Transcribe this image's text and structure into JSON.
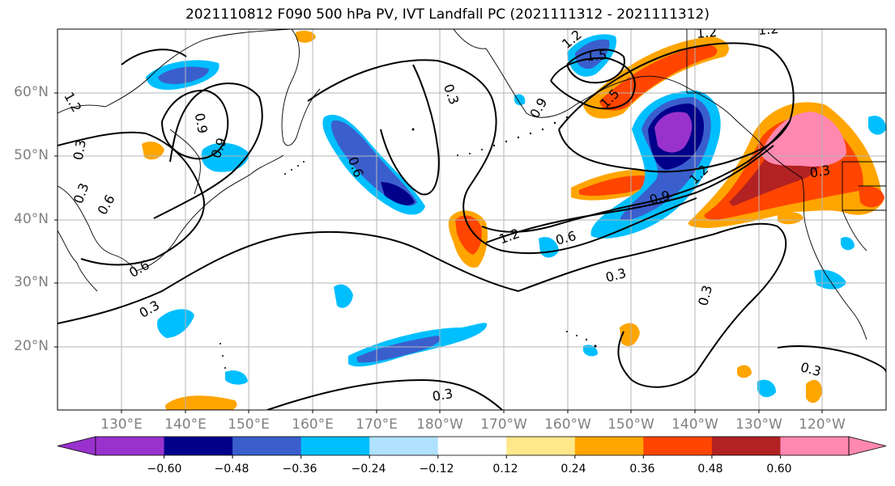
{
  "title": "2021110812 F090 500 hPa PV, IVT Landfall PC (2021111312 - 2021111312)",
  "lat_labels": [
    "60°N",
    "50°N",
    "40°N",
    "30°N",
    "20°N"
  ],
  "lon_labels": [
    "130°E",
    "140°E",
    "150°E",
    "160°E",
    "170°E",
    "180°W",
    "170°W",
    "160°W",
    "150°W",
    "140°W",
    "130°W",
    "120°W"
  ],
  "contour_labels": [
    "1.2",
    "1.5",
    "1.2",
    "0.9",
    "0.6",
    "0.3",
    "0.3",
    "0.6",
    "0.9",
    "1.2",
    "0.3",
    "0.6",
    "0.9",
    "1.2",
    "1.5",
    "1.2",
    "0.3",
    "0.6",
    "0.9",
    "1.2",
    "0.3",
    "0.3",
    "0.3",
    "0.3",
    "0.3"
  ],
  "colorbar": {
    "tick_labels": [
      "−0.60",
      "−0.48",
      "−0.36",
      "−0.24",
      "−0.12",
      "0.12",
      "0.24",
      "0.36",
      "0.48",
      "0.60"
    ],
    "colors": [
      "#9932CC",
      "#00008B",
      "#3A5FCD",
      "#00BFFF",
      "#B0E2FF",
      "#FFFFFF",
      "#FFE88A",
      "#FFA500",
      "#FF4500",
      "#B22222",
      "#FF88B0"
    ]
  }
}
